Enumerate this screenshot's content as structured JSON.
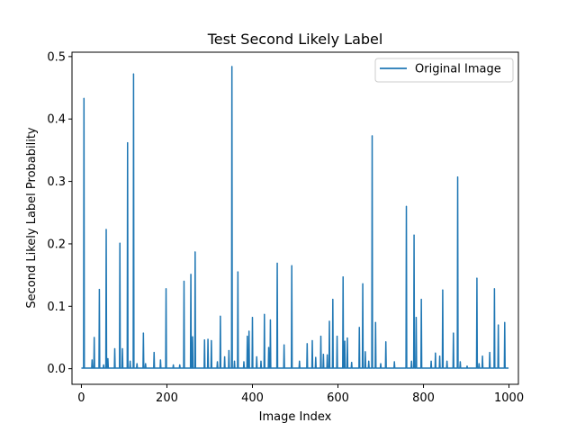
{
  "chart_data": {
    "type": "line",
    "title": "Test Second Likely Label",
    "xlabel": "Image Index",
    "ylabel": "Second Likely Label Probability",
    "xlim": [
      -22,
      1022
    ],
    "ylim": [
      -0.025,
      0.507
    ],
    "xticks": [
      0,
      200,
      400,
      600,
      800,
      1000
    ],
    "xtick_labels": [
      "0",
      "200",
      "400",
      "600",
      "800",
      "1000"
    ],
    "yticks": [
      0.0,
      0.1,
      0.2,
      0.3,
      0.4,
      0.5
    ],
    "ytick_labels": [
      "0.0",
      "0.1",
      "0.2",
      "0.3",
      "0.4",
      "0.5"
    ],
    "grid": false,
    "legend_position": "top-right",
    "color": "#1f77b4",
    "series": [
      {
        "name": "Original Image",
        "baseline": 0.001,
        "n_points": 1000,
        "peaks": [
          [
            6,
            0.433
          ],
          [
            25,
            0.014
          ],
          [
            30,
            0.05
          ],
          [
            42,
            0.127
          ],
          [
            52,
            0.006
          ],
          [
            58,
            0.223
          ],
          [
            62,
            0.016
          ],
          [
            78,
            0.032
          ],
          [
            90,
            0.201
          ],
          [
            96,
            0.032
          ],
          [
            108,
            0.362
          ],
          [
            114,
            0.012
          ],
          [
            122,
            0.472
          ],
          [
            130,
            0.008
          ],
          [
            145,
            0.057
          ],
          [
            150,
            0.008
          ],
          [
            170,
            0.026
          ],
          [
            185,
            0.014
          ],
          [
            198,
            0.128
          ],
          [
            215,
            0.006
          ],
          [
            230,
            0.006
          ],
          [
            240,
            0.14
          ],
          [
            256,
            0.151
          ],
          [
            260,
            0.051
          ],
          [
            266,
            0.187
          ],
          [
            288,
            0.046
          ],
          [
            296,
            0.047
          ],
          [
            304,
            0.045
          ],
          [
            318,
            0.011
          ],
          [
            325,
            0.084
          ],
          [
            335,
            0.019
          ],
          [
            345,
            0.029
          ],
          [
            352,
            0.484
          ],
          [
            358,
            0.012
          ],
          [
            366,
            0.155
          ],
          [
            380,
            0.011
          ],
          [
            388,
            0.052
          ],
          [
            392,
            0.06
          ],
          [
            400,
            0.082
          ],
          [
            410,
            0.019
          ],
          [
            420,
            0.012
          ],
          [
            428,
            0.087
          ],
          [
            438,
            0.034
          ],
          [
            442,
            0.078
          ],
          [
            458,
            0.169
          ],
          [
            474,
            0.038
          ],
          [
            492,
            0.165
          ],
          [
            510,
            0.012
          ],
          [
            528,
            0.04
          ],
          [
            540,
            0.045
          ],
          [
            548,
            0.018
          ],
          [
            560,
            0.052
          ],
          [
            566,
            0.023
          ],
          [
            575,
            0.022
          ],
          [
            580,
            0.076
          ],
          [
            588,
            0.111
          ],
          [
            598,
            0.052
          ],
          [
            612,
            0.147
          ],
          [
            616,
            0.044
          ],
          [
            622,
            0.049
          ],
          [
            632,
            0.01
          ],
          [
            650,
            0.066
          ],
          [
            658,
            0.136
          ],
          [
            664,
            0.027
          ],
          [
            672,
            0.012
          ],
          [
            680,
            0.373
          ],
          [
            688,
            0.074
          ],
          [
            700,
            0.008
          ],
          [
            712,
            0.043
          ],
          [
            732,
            0.011
          ],
          [
            760,
            0.26
          ],
          [
            772,
            0.012
          ],
          [
            778,
            0.214
          ],
          [
            783,
            0.082
          ],
          [
            795,
            0.111
          ],
          [
            818,
            0.012
          ],
          [
            828,
            0.025
          ],
          [
            838,
            0.02
          ],
          [
            845,
            0.126
          ],
          [
            855,
            0.012
          ],
          [
            870,
            0.057
          ],
          [
            880,
            0.307
          ],
          [
            886,
            0.011
          ],
          [
            902,
            0.004
          ],
          [
            925,
            0.145
          ],
          [
            930,
            0.008
          ],
          [
            938,
            0.02
          ],
          [
            955,
            0.026
          ],
          [
            966,
            0.128
          ],
          [
            975,
            0.07
          ],
          [
            990,
            0.074
          ]
        ]
      }
    ]
  }
}
